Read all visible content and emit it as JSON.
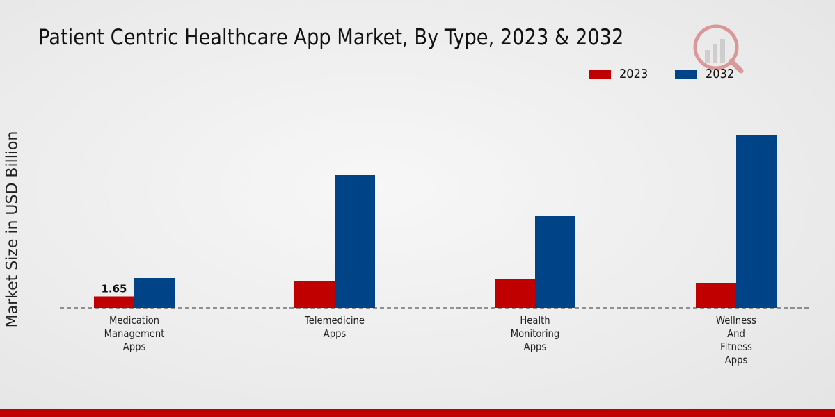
{
  "chart_data": {
    "type": "bar",
    "title": "Patient Centric Healthcare App Market, By Type, 2023 & 2032",
    "ylabel": "Market Size in USD Billion",
    "xlabel": "",
    "categories": [
      [
        "Medication",
        "Management",
        "Apps"
      ],
      [
        "Telemedicine",
        "Apps"
      ],
      [
        "Health",
        "Monitoring",
        "Apps"
      ],
      [
        "Wellness",
        "And",
        "Fitness",
        "Apps"
      ]
    ],
    "series": [
      {
        "name": "2023",
        "color": "#c00000",
        "values": [
          1.65,
          3.8,
          4.2,
          3.6
        ]
      },
      {
        "name": "2032",
        "color": "#004488",
        "values": [
          4.3,
          19.1,
          13.2,
          24.9
        ]
      }
    ],
    "data_labels": [
      {
        "series": 0,
        "index": 0,
        "text": "1.65"
      }
    ],
    "ylim": [
      0,
      30
    ],
    "grid": false,
    "legend_position": "top-right"
  }
}
